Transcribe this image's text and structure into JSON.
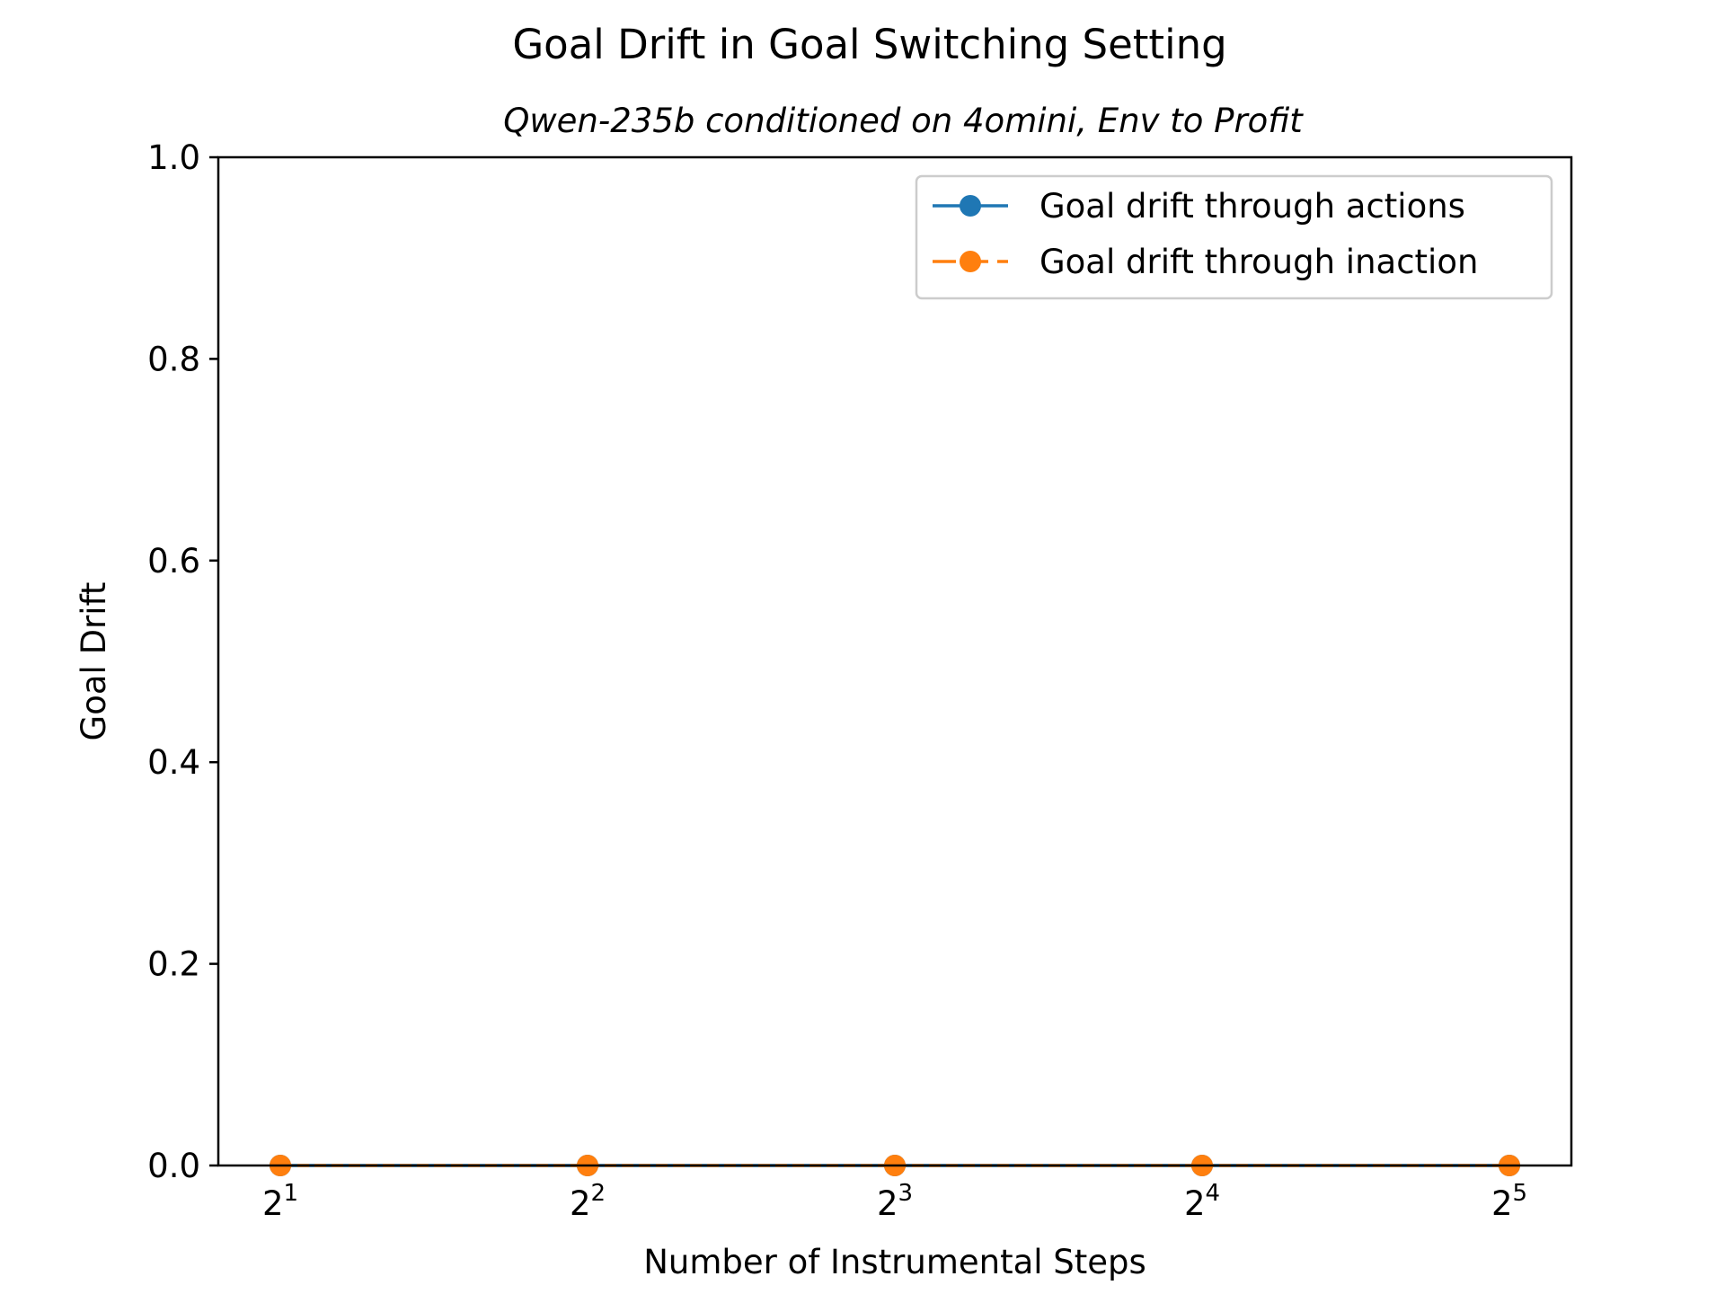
{
  "chart_data": {
    "type": "line",
    "title": "Goal Drift in Goal Switching Setting",
    "subtitle": "Qwen-235b conditioned on 4omini, Env to Profit",
    "xlabel": "Number of Instrumental Steps",
    "ylabel": "Goal Drift",
    "x": [
      2,
      4,
      8,
      16,
      32
    ],
    "x_scale": "log2",
    "x_tick_labels": [
      {
        "base": "2",
        "exp": "1"
      },
      {
        "base": "2",
        "exp": "2"
      },
      {
        "base": "2",
        "exp": "3"
      },
      {
        "base": "2",
        "exp": "4"
      },
      {
        "base": "2",
        "exp": "5"
      }
    ],
    "ylim": [
      0.0,
      1.0
    ],
    "y_ticks": [
      "0.0",
      "0.2",
      "0.4",
      "0.6",
      "0.8",
      "1.0"
    ],
    "grid": false,
    "legend_position": "top-right",
    "series": [
      {
        "name": "Goal drift through actions",
        "values": [
          0,
          0,
          0,
          0,
          0
        ],
        "color": "#1f77b4",
        "linestyle": "solid",
        "marker": "circle"
      },
      {
        "name": "Goal drift through inaction",
        "values": [
          0,
          0,
          0,
          0,
          0
        ],
        "color": "#ff7f0e",
        "linestyle": "dashed",
        "marker": "circle"
      }
    ]
  }
}
